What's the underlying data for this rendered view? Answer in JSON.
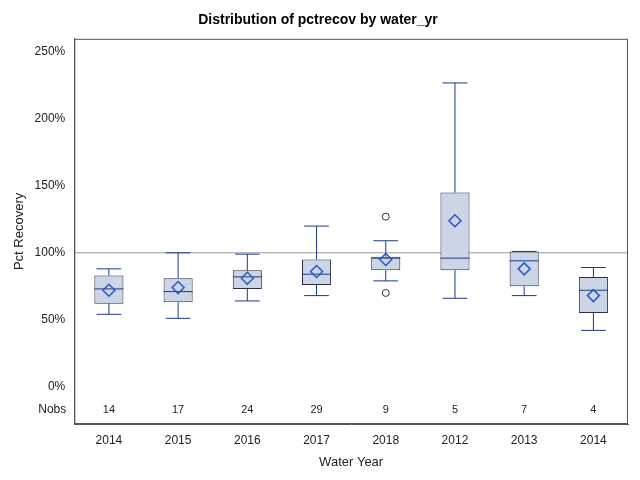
{
  "chart_data": {
    "type": "box",
    "title": "Distribution of pctrecov by water_yr",
    "x_label": "Water Year",
    "y_label": "Pct Recovery",
    "categories": [
      "2014",
      "2015",
      "2016",
      "2017",
      "2018",
      "2012",
      "2013",
      "2014"
    ],
    "boxes": [
      {
        "min": 54,
        "q1": 62,
        "median": 73,
        "q3": 83,
        "max": 88,
        "mean": 72,
        "outliers": []
      },
      {
        "min": 51,
        "q1": 63,
        "median": 71,
        "q3": 81,
        "max": 100,
        "mean": 74,
        "outliers": []
      },
      {
        "min": 64,
        "q1": 73,
        "median": 82,
        "q3": 87,
        "max": 99,
        "mean": 81,
        "outliers": []
      },
      {
        "min": 68,
        "q1": 76,
        "median": 84,
        "q3": 95,
        "max": 120,
        "mean": 86,
        "outliers": []
      },
      {
        "min": 79,
        "q1": 87,
        "median": 96,
        "q3": 97,
        "max": 109,
        "mean": 95,
        "outliers": [
          127,
          70
        ]
      },
      {
        "min": 66,
        "q1": 87,
        "median": 96,
        "q3": 145,
        "max": 227,
        "mean": 124,
        "outliers": []
      },
      {
        "min": 68,
        "q1": 75,
        "median": 94,
        "q3": 101,
        "max": 101,
        "mean": 88,
        "outliers": []
      },
      {
        "min": 42,
        "q1": 55,
        "median": 72,
        "q3": 82,
        "max": 89,
        "mean": 68,
        "outliers": []
      }
    ],
    "nobs_label": "Nobs",
    "nobs": [
      14,
      17,
      24,
      29,
      9,
      5,
      7,
      4
    ],
    "reference_line": 100,
    "color": "#cbd5e6",
    "grid": false,
    "ylim": [
      -28,
      260
    ],
    "yticks": [
      {
        "value": 0,
        "label": "0%"
      },
      {
        "value": 50,
        "label": "50%"
      },
      {
        "value": 100,
        "label": "100%"
      },
      {
        "value": 150,
        "label": "150%"
      },
      {
        "value": 200,
        "label": "200%"
      },
      {
        "value": 250,
        "label": "250%"
      }
    ]
  }
}
